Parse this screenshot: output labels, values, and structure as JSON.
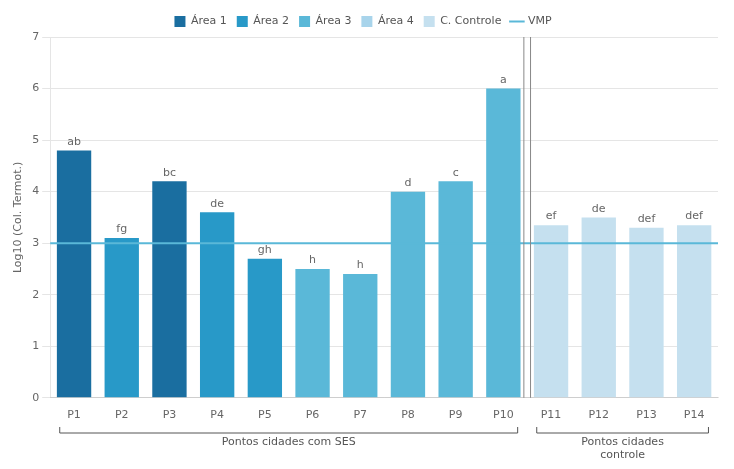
{
  "chart_data": {
    "type": "bar",
    "categories": [
      "P1",
      "P2",
      "P3",
      "P4",
      "P5",
      "P6",
      "P7",
      "P8",
      "P9",
      "P10",
      "P11",
      "P12",
      "P13",
      "P14"
    ],
    "values": [
      4.8,
      3.1,
      4.2,
      3.6,
      2.7,
      2.5,
      2.4,
      4.0,
      4.2,
      6.0,
      3.35,
      3.5,
      3.3,
      3.35
    ],
    "colors": [
      "#1a6ea0",
      "#2899c8",
      "#1a6ea0",
      "#2899c8",
      "#2899c8",
      "#5ab8d8",
      "#5ab8d8",
      "#5ab8d8",
      "#5ab8d8",
      "#5ab8d8",
      "#c5e0ef",
      "#c5e0ef",
      "#c5e0ef",
      "#c5e0ef"
    ],
    "annotations": [
      {
        "category": "P1",
        "text": "ab"
      },
      {
        "category": "P2",
        "text": "fg"
      },
      {
        "category": "P3",
        "text": "bc"
      },
      {
        "category": "P4",
        "text": "de"
      },
      {
        "category": "P5",
        "text": "gh"
      },
      {
        "category": "P6",
        "text": "h"
      },
      {
        "category": "P7",
        "text": "h"
      },
      {
        "category": "P8",
        "text": "d"
      },
      {
        "category": "P9",
        "text": "c"
      },
      {
        "category": "P10",
        "text": "a"
      },
      {
        "category": "P11",
        "text": "ef"
      },
      {
        "category": "P12",
        "text": "de"
      },
      {
        "category": "P13",
        "text": "def"
      },
      {
        "category": "P14",
        "text": "def"
      }
    ],
    "hline": {
      "value": 3.0,
      "color": "#5ab8d8"
    },
    "ylabel": "Log10 (Col. Termot.)",
    "ylim": [
      0,
      7
    ],
    "yticks": [
      0,
      1,
      2,
      3,
      4,
      5,
      6,
      7
    ],
    "grid": true,
    "groups": [
      {
        "label": "Pontos cidades com SES",
        "first": "P1",
        "last": "P10"
      },
      {
        "label": "Pontos cidades\ncontrole",
        "first": "P11",
        "last": "P14"
      }
    ],
    "legend_entries": [
      {
        "label": "Área 1",
        "color": "#1a6ea0",
        "type": "bar"
      },
      {
        "label": "Área 2",
        "color": "#2899c8",
        "type": "bar"
      },
      {
        "label": "Área 3",
        "color": "#5ab8d8",
        "type": "bar"
      },
      {
        "label": "Área 4",
        "color": "#a8d4eb",
        "type": "bar"
      },
      {
        "label": "C. Controle",
        "color": "#c5e0ef",
        "type": "bar"
      },
      {
        "label": "VMP",
        "color": "#5ab8d8",
        "type": "line"
      }
    ],
    "legend": "top"
  }
}
